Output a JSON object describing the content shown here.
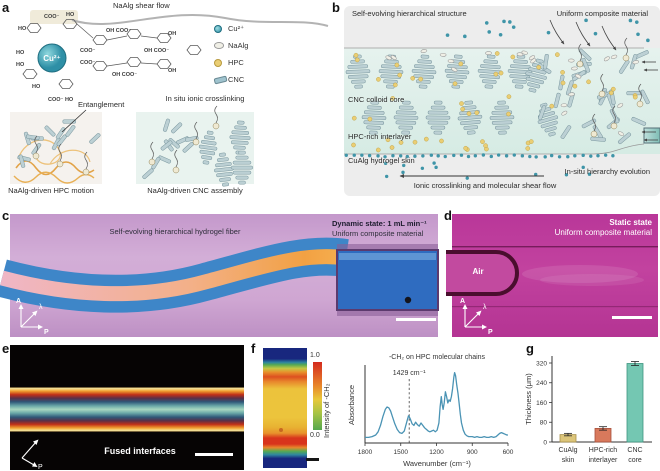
{
  "figure_labels": {
    "a": "a",
    "b": "b",
    "c": "c",
    "d": "d",
    "e": "e",
    "f": "f",
    "g": "g"
  },
  "panel_a": {
    "shear_flow_label": "NaAlg shear flow",
    "crosslinking_label": "In situ ionic crosslinking",
    "cu_ion_label": "Cu²⁺",
    "chem_labels": [
      "COO⁻",
      "HO",
      "HO",
      "OH COO⁻",
      "OH",
      "COO⁻",
      "OH COO⁻",
      "HO",
      "HO",
      "COO⁻",
      "OH COO⁻",
      "OH",
      "HO",
      "COO⁻  HO"
    ],
    "legend": [
      {
        "icon": "cu-ion-icon",
        "label": "Cu²⁺"
      },
      {
        "icon": "naalg-icon",
        "label": "NaAlg"
      },
      {
        "icon": "hpc-icon",
        "label": "HPC"
      },
      {
        "icon": "cnc-icon",
        "label": "CNC"
      }
    ],
    "entanglement_label": "Entanglement",
    "hpc_motion_caption": "NaAlg-driven HPC motion",
    "cnc_assembly_caption": "NaAlg-driven CNC assembly"
  },
  "panel_b": {
    "left_title": "Self-evolving hierarchical structure",
    "right_title": "Uniform composite material",
    "label_core": "CNC colloid core",
    "label_interlayer": "HPC-rich interlayer",
    "label_skin": "CuAlg hydrogel skin",
    "label_evolution": "In-situ hierarchy evolution",
    "label_flow": "Ionic crosslinking and molecular shear flow"
  },
  "panel_c": {
    "title": "Self-evolving hierarchical hydrogel fiber",
    "state_label": "Dynamic state: 1 mL min⁻¹",
    "material_label": "Uniform composite material",
    "axis_marker": {
      "vertical": "A",
      "diagonal": "λ",
      "horizontal": "P"
    }
  },
  "panel_d": {
    "state_label": "Static state",
    "material_label": "Uniform composite material",
    "air_label": "Air",
    "axis_marker": {
      "vertical": "A",
      "diagonal": "λ",
      "horizontal": "P"
    }
  },
  "panel_e": {
    "caption": "Fused interfaces",
    "axis_marker": {
      "horizontal": "P"
    }
  },
  "panel_f": {
    "colorbar_max": "1.0",
    "colorbar_min": "0.0",
    "colorbar_label": "Intensity of -CH₂"
  },
  "chart_data": [
    {
      "type": "line",
      "panel": "f",
      "title": "-CH₂ on HPC molecular chains",
      "xlabel": "Wavenumber (cm⁻¹)",
      "ylabel": "Absorbance",
      "xlim": [
        1800,
        600
      ],
      "x_ticks": [
        1800,
        1500,
        1200,
        900,
        600
      ],
      "annotation": {
        "text": "1429 cm⁻¹",
        "x": 1429,
        "style": "dashed-vline"
      },
      "line_color": "#4a93b4",
      "x": [
        1800,
        1770,
        1740,
        1710,
        1690,
        1670,
        1650,
        1630,
        1615,
        1600,
        1585,
        1570,
        1550,
        1530,
        1510,
        1490,
        1470,
        1450,
        1435,
        1429,
        1420,
        1405,
        1390,
        1375,
        1360,
        1345,
        1330,
        1315,
        1300,
        1285,
        1270,
        1255,
        1240,
        1225,
        1210,
        1195,
        1180,
        1170,
        1160,
        1152,
        1145,
        1135,
        1125,
        1115,
        1105,
        1095,
        1085,
        1075,
        1065,
        1055,
        1048,
        1040,
        1030,
        1020,
        1010,
        1000,
        990,
        975,
        960,
        945,
        930,
        915,
        900,
        880,
        860,
        840,
        820,
        800,
        780,
        760,
        740,
        720,
        700,
        685,
        670,
        655,
        640,
        625,
        610,
        600
      ],
      "y": [
        0.07,
        0.07,
        0.08,
        0.1,
        0.14,
        0.22,
        0.33,
        0.42,
        0.45,
        0.44,
        0.4,
        0.33,
        0.24,
        0.17,
        0.13,
        0.12,
        0.15,
        0.26,
        0.34,
        0.33,
        0.3,
        0.24,
        0.22,
        0.26,
        0.23,
        0.21,
        0.25,
        0.22,
        0.19,
        0.17,
        0.15,
        0.14,
        0.15,
        0.16,
        0.14,
        0.16,
        0.25,
        0.45,
        0.58,
        0.48,
        0.42,
        0.5,
        0.64,
        0.58,
        0.5,
        0.54,
        0.52,
        0.58,
        0.68,
        0.82,
        0.88,
        0.84,
        0.72,
        0.62,
        0.5,
        0.36,
        0.25,
        0.16,
        0.11,
        0.09,
        0.08,
        0.08,
        0.08,
        0.07,
        0.08,
        0.07,
        0.07,
        0.08,
        0.07,
        0.07,
        0.08,
        0.07,
        0.08,
        0.1,
        0.12,
        0.13,
        0.12,
        0.11,
        0.1,
        0.1
      ]
    },
    {
      "type": "bar",
      "panel": "g",
      "ylabel": "Thickness (μm)",
      "ylim": [
        0,
        340
      ],
      "y_ticks": [
        0,
        80,
        160,
        240,
        320
      ],
      "categories": [
        "CuAlg skin",
        "HPC-rich interlayer",
        "CNC core"
      ],
      "category_lines": [
        [
          "CuAlg",
          "skin"
        ],
        [
          "HPC-rich",
          "interlayer"
        ],
        [
          "CNC",
          "core"
        ]
      ],
      "values": [
        30,
        55,
        318
      ],
      "errors": [
        5,
        7,
        8
      ],
      "bar_colors": [
        "#dcc57a",
        "#d8795c",
        "#74c7b2"
      ],
      "bar_edge_colors": [
        "#a8904a",
        "#a8503c",
        "#3f9580"
      ]
    }
  ],
  "colors": {
    "panel_c_bg": "#cba4d0",
    "fiber_blue": "#3e86c8",
    "fiber_core_orange": "#f2a143",
    "panel_d_bg": "#bf3c9e",
    "spectrum_line": "#4a93b4",
    "cu_teal": "#3f95a8",
    "hpc_yellow": "#eace74",
    "cnc_rod": "#bcd0d4"
  }
}
